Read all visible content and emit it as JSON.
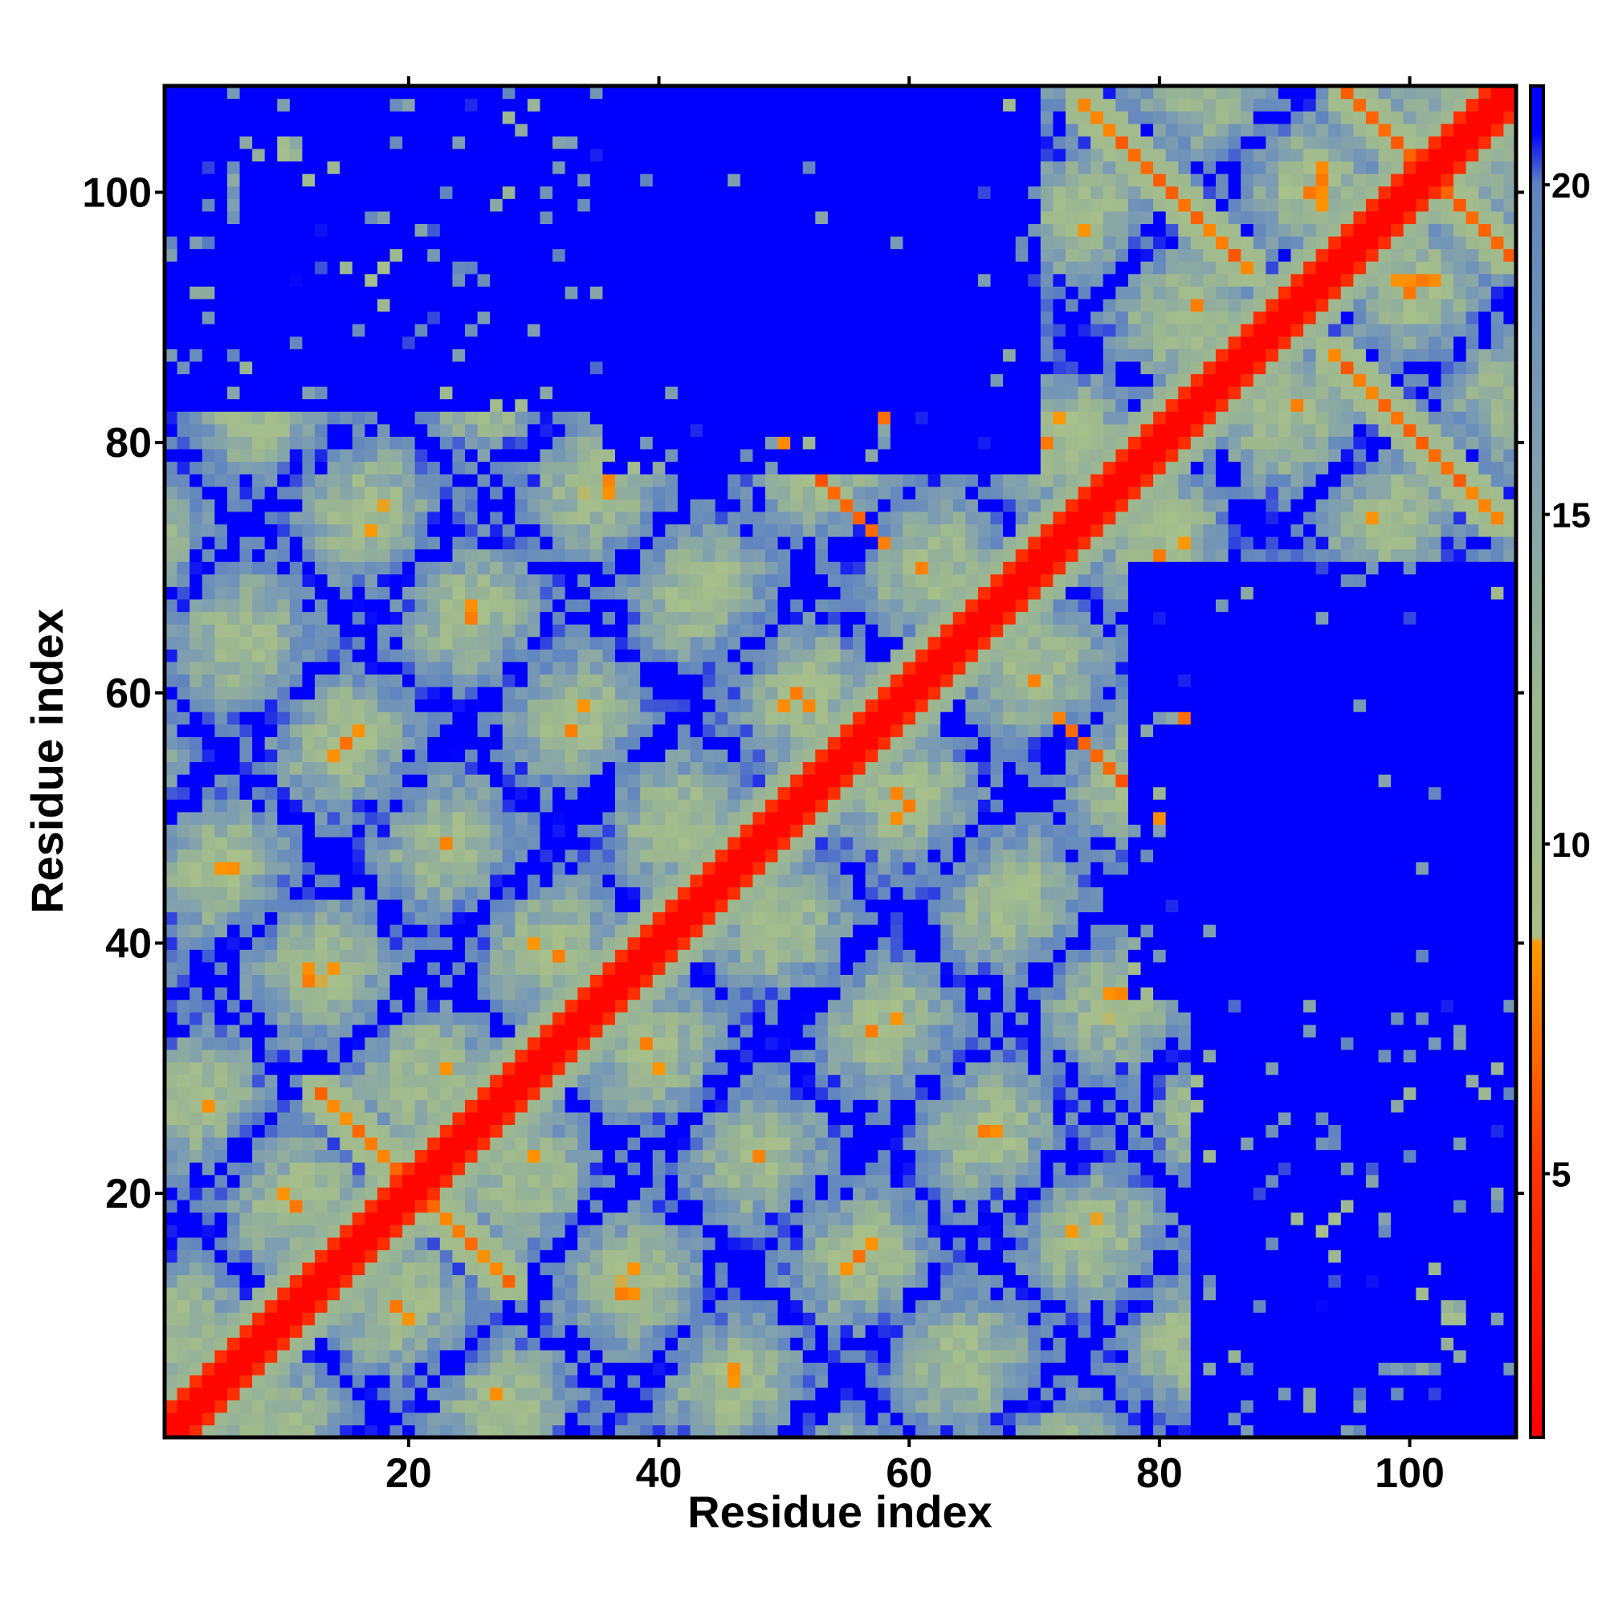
{
  "chart_data": {
    "type": "heatmap",
    "title": "",
    "xlabel": "Residue index",
    "ylabel": "Residue index",
    "xlim": [
      1,
      108
    ],
    "ylim": [
      1,
      108
    ],
    "n_residues": 108,
    "x_ticks": [
      20,
      40,
      60,
      80,
      100
    ],
    "y_ticks": [
      20,
      40,
      60,
      80,
      100
    ],
    "colorbar": {
      "ticks": [
        5,
        10,
        15,
        20
      ],
      "range": [
        1,
        21.5
      ],
      "label": "",
      "stops": [
        {
          "value": 1,
          "color": "#ff0000"
        },
        {
          "value": 5,
          "color": "#ff3300"
        },
        {
          "value": 8.5,
          "color": "#ff9900"
        },
        {
          "value": 8.6,
          "color": "#a8c08a"
        },
        {
          "value": 12,
          "color": "#9db890"
        },
        {
          "value": 16,
          "color": "#7f9fb0"
        },
        {
          "value": 20,
          "color": "#5f84c0"
        },
        {
          "value": 20.8,
          "color": "#0000ff"
        }
      ]
    },
    "structure": {
      "description_free": true,
      "diagonal": {
        "value": 1.5
      },
      "antiparallel_contacts": [
        {
          "i_start": 13,
          "j_start": 28,
          "length": 8
        },
        {
          "i_start": 72,
          "j_start": 58,
          "length": 12
        },
        {
          "i_start": 82,
          "j_start": 58,
          "length": 12
        },
        {
          "i_start": 74,
          "j_start": 107,
          "length": 14
        },
        {
          "i_start": 95,
          "j_start": 108,
          "length": 14
        }
      ],
      "blank_regions": [
        {
          "x": [
            83,
            108
          ],
          "y": [
            1,
            65
          ]
        },
        {
          "x": [
            36,
            70
          ],
          "y": [
            78,
            108
          ]
        }
      ]
    }
  }
}
